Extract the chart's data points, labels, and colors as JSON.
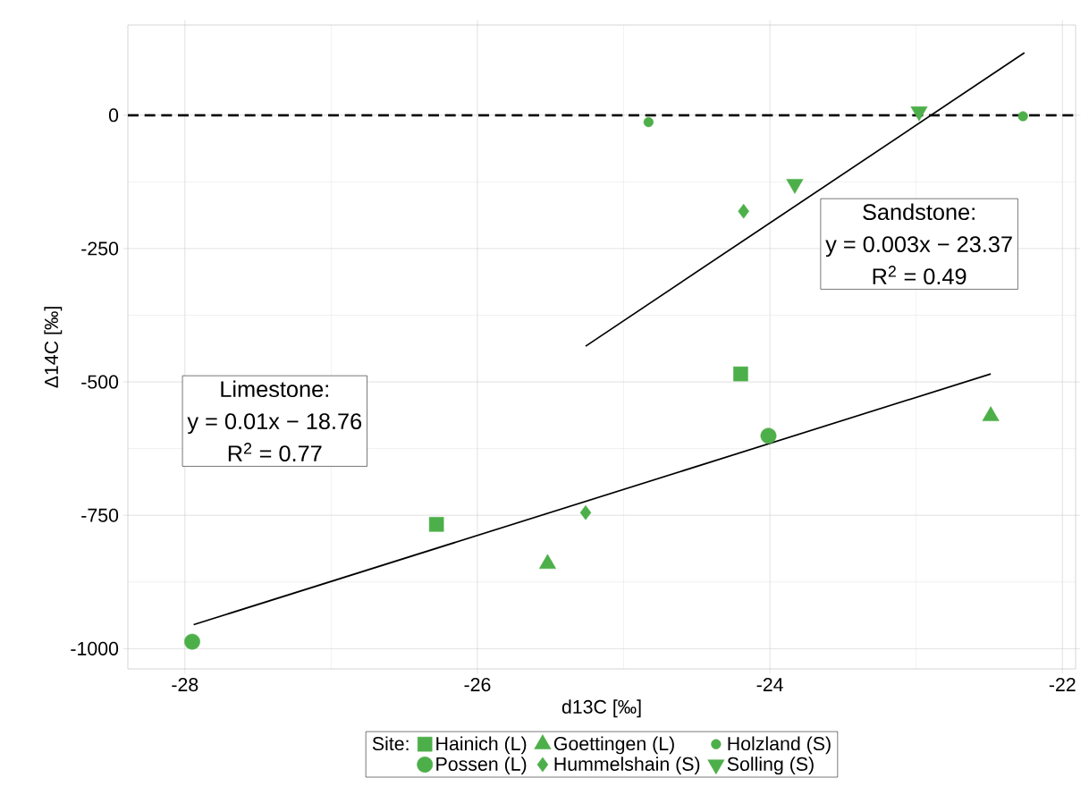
{
  "chart_data": {
    "type": "scatter",
    "xlabel": "d13C [‰]",
    "ylabel": "Δ14C [‰]",
    "legend_title": "Site:",
    "xlim": [
      -28.39,
      -21.91
    ],
    "ylim": [
      -1038,
      169
    ],
    "xticks": [
      -28,
      -26,
      -24,
      -22
    ],
    "yticks": [
      -1000,
      -750,
      -500,
      -250,
      0
    ],
    "grid": true,
    "legend": "bottom",
    "series": [
      {
        "name": "Hainich (L)",
        "color": "#4daf4a",
        "marker": "square",
        "x": [
          -26.28,
          -24.2
        ],
        "values": [
          -767,
          -485
        ]
      },
      {
        "name": "Possen (L)",
        "color": "#4daf4a",
        "marker": "circle",
        "x": [
          -27.95,
          -24.01
        ],
        "values": [
          -987,
          -601
        ]
      },
      {
        "name": "Goettingen (L)",
        "color": "#4daf4a",
        "marker": "triangle",
        "x": [
          -25.52,
          -22.49
        ],
        "values": [
          -841,
          -564
        ]
      },
      {
        "name": "Hummelshain (S)",
        "color": "#4daf4a",
        "marker": "diamond",
        "x": [
          -25.26,
          -24.18
        ],
        "values": [
          -745,
          -180
        ]
      },
      {
        "name": "Holzland (S)",
        "color": "#4daf4a",
        "marker": "circle",
        "x": [
          -24.83,
          -22.27
        ],
        "values": [
          -13,
          -2
        ]
      },
      {
        "name": "Solling (S)",
        "color": "#4daf4a",
        "marker": "triangle down",
        "x": [
          -23.83,
          -22.98
        ],
        "values": [
          -129,
          7
        ]
      },
      {
        "type": "line",
        "color": "#000000",
        "marker": "none",
        "x": [
          -27.94,
          -22.49
        ],
        "values": [
          -955,
          -485
        ]
      },
      {
        "type": "line",
        "color": "#000000",
        "marker": "none",
        "x": [
          -25.26,
          -22.26
        ],
        "values": [
          -433,
          117
        ]
      }
    ],
    "ref_lines": [
      {
        "axis": "y",
        "value": 0,
        "line_style": "dashed",
        "color": "#000000"
      }
    ],
    "annotations": [
      "Sandstone:",
      "y = 0.003x − 23.37",
      "R$^{2}$ = 0.49",
      "Limestone:",
      "y = 0.01x − 18.76",
      "R$^{2}$ = 0.77"
    ]
  }
}
